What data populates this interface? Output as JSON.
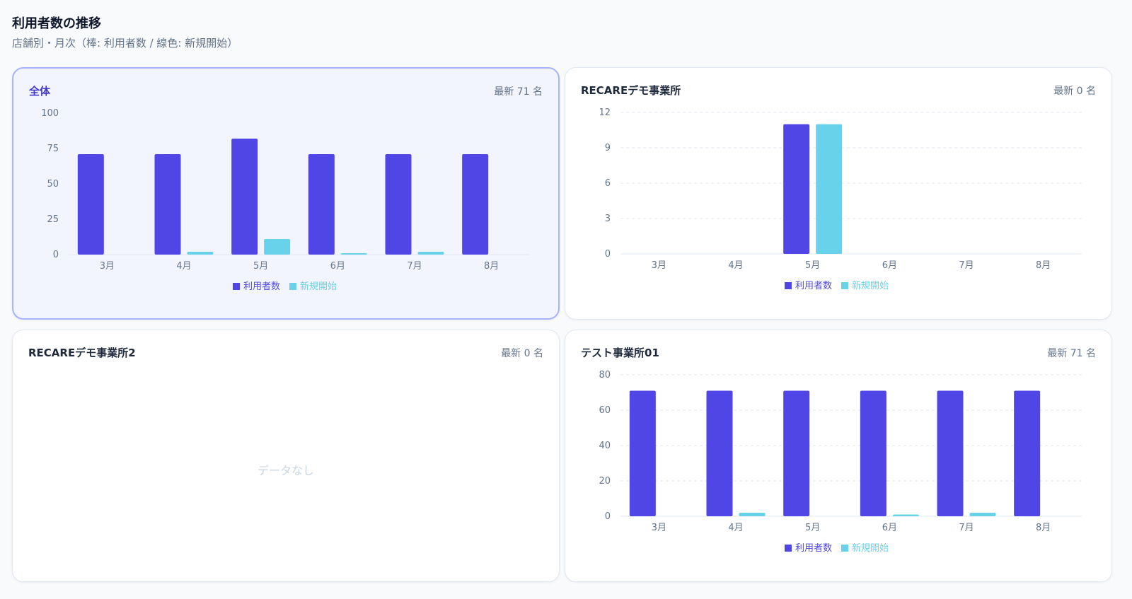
{
  "header": {
    "title": "利用者数の推移",
    "subtitle": "店舗別・月次（棒: 利用者数 / 線色: 新規開始）"
  },
  "colors": {
    "users": "#4f46e5",
    "new_starts": "#67d2ea"
  },
  "cards": [
    {
      "title": "全体",
      "meta": "最新 71 名",
      "selected": true,
      "empty_text": "",
      "chart_data": {
        "type": "bar",
        "categories": [
          "3月",
          "4月",
          "5月",
          "6月",
          "7月",
          "8月"
        ],
        "series": [
          {
            "name": "利用者数",
            "values": [
              71,
              71,
              82,
              71,
              71,
              71
            ]
          },
          {
            "name": "新規開始",
            "values": [
              0,
              2,
              11,
              1,
              2,
              0
            ]
          }
        ],
        "ylim": [
          0,
          100
        ],
        "yticks": [
          0,
          25,
          50,
          75,
          100
        ],
        "grid": false,
        "legend": "bottom-center"
      }
    },
    {
      "title": "RECAREデモ事業所",
      "meta": "最新 0 名",
      "selected": false,
      "empty_text": "",
      "chart_data": {
        "type": "bar",
        "categories": [
          "3月",
          "4月",
          "5月",
          "6月",
          "7月",
          "8月"
        ],
        "series": [
          {
            "name": "利用者数",
            "values": [
              0,
              0,
              11,
              0,
              0,
              0
            ]
          },
          {
            "name": "新規開始",
            "values": [
              0,
              0,
              11,
              0,
              0,
              0
            ]
          }
        ],
        "ylim": [
          0,
          12
        ],
        "yticks": [
          0,
          3,
          6,
          9,
          12
        ],
        "grid": true,
        "legend": "bottom-center"
      }
    },
    {
      "title": "RECAREデモ事業所2",
      "meta": "最新 0 名",
      "selected": false,
      "empty_text": "データなし",
      "chart_data": null
    },
    {
      "title": "テスト事業所01",
      "meta": "最新 71 名",
      "selected": false,
      "empty_text": "",
      "chart_data": {
        "type": "bar",
        "categories": [
          "3月",
          "4月",
          "5月",
          "6月",
          "7月",
          "8月"
        ],
        "series": [
          {
            "name": "利用者数",
            "values": [
              71,
              71,
              71,
              71,
              71,
              71
            ]
          },
          {
            "name": "新規開始",
            "values": [
              0,
              2,
              0,
              1,
              2,
              0
            ]
          }
        ],
        "ylim": [
          0,
          80
        ],
        "yticks": [
          0,
          20,
          40,
          60,
          80
        ],
        "grid": true,
        "legend": "bottom-center"
      }
    }
  ]
}
